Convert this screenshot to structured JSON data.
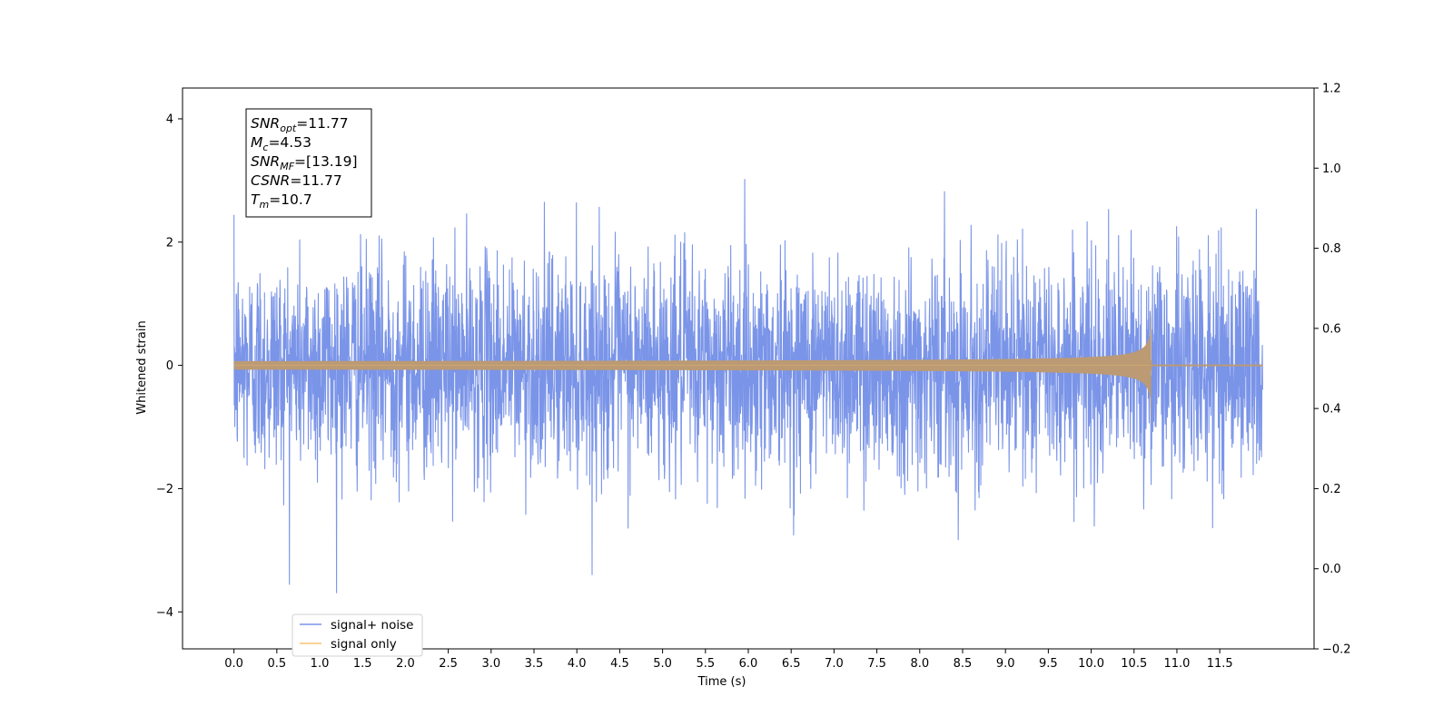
{
  "chart_data": {
    "type": "line",
    "title": "",
    "xlabel": "Time (s)",
    "ylabel": "Whitened strain",
    "xlim": [
      -0.6,
      12.6
    ],
    "ylim": [
      -4.6,
      4.5
    ],
    "ylim_right": [
      -0.2,
      1.2
    ],
    "x_ticks": [
      0.0,
      0.5,
      1.0,
      1.5,
      2.0,
      2.5,
      3.0,
      3.5,
      4.0,
      4.5,
      5.0,
      5.5,
      6.0,
      6.5,
      7.0,
      7.5,
      8.0,
      8.5,
      9.0,
      9.5,
      10.0,
      10.5,
      11.0,
      11.5
    ],
    "x_tick_labels": [
      "0.0",
      "0.5",
      "1.0",
      "1.5",
      "2.0",
      "2.5",
      "3.0",
      "3.5",
      "4.0",
      "4.5",
      "5.0",
      "5.5",
      "6.0",
      "6.5",
      "7.0",
      "7.5",
      "8.0",
      "8.5",
      "9.0",
      "9.5",
      "10.0",
      "10.5",
      "11.0",
      "11.5"
    ],
    "y_ticks": [
      -4,
      -2,
      0,
      2,
      4
    ],
    "y_tick_labels": [
      "−4",
      "−2",
      "0",
      "2",
      "4"
    ],
    "y_ticks_right": [
      -0.2,
      0.0,
      0.2,
      0.4,
      0.6,
      0.8,
      1.0,
      1.2
    ],
    "y_tick_labels_right": [
      "−0.2",
      "0.0",
      "0.2",
      "0.4",
      "0.6",
      "0.8",
      "1.0",
      "1.2"
    ],
    "grid": false,
    "legend_position": "lower-left",
    "series": [
      {
        "name": "signal+ noise",
        "color": "#7a94e8",
        "description_range": [
          -4.2,
          4.05
        ],
        "x_range": [
          0.0,
          12.0
        ]
      },
      {
        "name": "signal only",
        "color": "#f5c46e",
        "merger_time": 10.7,
        "peak_amplitude": 1.0,
        "x_range": [
          0.0,
          12.0
        ]
      }
    ],
    "annotation": {
      "lines": [
        {
          "base": "SNR",
          "sub": "opt",
          "rest": "=11.77"
        },
        {
          "base": "M",
          "sub": "c",
          "rest": "=4.53"
        },
        {
          "base": "SNR",
          "sub": "MF",
          "rest": "=[13.19]"
        },
        {
          "base": "CSNR",
          "sub": "",
          "rest": "=11.77"
        },
        {
          "base": "T",
          "sub": "m",
          "rest": "=10.7"
        }
      ]
    }
  }
}
